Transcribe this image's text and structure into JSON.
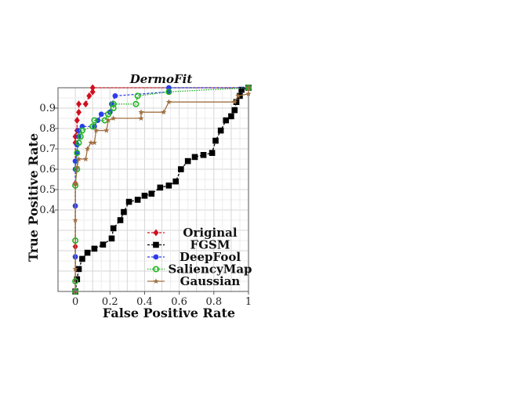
{
  "chart_data": {
    "type": "line",
    "title": "DermoFit",
    "xlabel": "False Positive Rate",
    "ylabel": "True Positive Rate",
    "xlim": [
      -0.1,
      1.0
    ],
    "ylim": [
      0.0,
      1.0
    ],
    "x_ticks": [
      0,
      0.2,
      0.4,
      0.6,
      0.8,
      1
    ],
    "x_tick_labels": [
      "0",
      "0.2",
      "0.4",
      "0.6",
      "0.8",
      "1"
    ],
    "y_ticks": [
      0.4,
      0.5,
      0.6,
      0.7,
      0.8,
      0.9
    ],
    "y_tick_labels": [
      "0.4",
      "0.5",
      "0.6",
      "0.7",
      "0.8",
      "0.9"
    ],
    "grid": true,
    "legend_position": "bottom-right",
    "series": [
      {
        "name": "Original",
        "color": "#d0101e",
        "marker": "diamond",
        "line": "dashed",
        "points": [
          [
            0,
            0
          ],
          [
            0,
            0.22
          ],
          [
            0,
            0.53
          ],
          [
            0,
            0.73
          ],
          [
            0,
            0.76
          ],
          [
            0.01,
            0.79
          ],
          [
            0.01,
            0.84
          ],
          [
            0.02,
            0.88
          ],
          [
            0.02,
            0.92
          ],
          [
            0.06,
            0.92
          ],
          [
            0.08,
            0.96
          ],
          [
            0.1,
            0.98
          ],
          [
            0.1,
            1.0
          ],
          [
            1.0,
            1.0
          ]
        ]
      },
      {
        "name": "FGSM",
        "color": "#000000",
        "marker": "square",
        "line": "dashed",
        "points": [
          [
            0,
            0
          ],
          [
            0.01,
            0.06
          ],
          [
            0.02,
            0.11
          ],
          [
            0.04,
            0.16
          ],
          [
            0.07,
            0.19
          ],
          [
            0.11,
            0.21
          ],
          [
            0.16,
            0.23
          ],
          [
            0.21,
            0.26
          ],
          [
            0.22,
            0.31
          ],
          [
            0.26,
            0.35
          ],
          [
            0.28,
            0.39
          ],
          [
            0.31,
            0.44
          ],
          [
            0.36,
            0.45
          ],
          [
            0.4,
            0.47
          ],
          [
            0.44,
            0.48
          ],
          [
            0.49,
            0.51
          ],
          [
            0.54,
            0.52
          ],
          [
            0.58,
            0.54
          ],
          [
            0.61,
            0.6
          ],
          [
            0.65,
            0.64
          ],
          [
            0.69,
            0.66
          ],
          [
            0.74,
            0.67
          ],
          [
            0.79,
            0.68
          ],
          [
            0.81,
            0.74
          ],
          [
            0.84,
            0.79
          ],
          [
            0.87,
            0.84
          ],
          [
            0.9,
            0.86
          ],
          [
            0.92,
            0.89
          ],
          [
            0.93,
            0.93
          ],
          [
            0.95,
            0.96
          ],
          [
            0.96,
            0.99
          ],
          [
            1.0,
            1.0
          ]
        ]
      },
      {
        "name": "DeepFool",
        "color": "#2b3ee8",
        "marker": "circle",
        "line": "dashed",
        "points": [
          [
            0,
            0
          ],
          [
            0,
            0.17
          ],
          [
            0,
            0.42
          ],
          [
            0,
            0.6
          ],
          [
            0,
            0.64
          ],
          [
            0.01,
            0.68
          ],
          [
            0.01,
            0.72
          ],
          [
            0.02,
            0.76
          ],
          [
            0.02,
            0.79
          ],
          [
            0.04,
            0.81
          ],
          [
            0.11,
            0.81
          ],
          [
            0.13,
            0.84
          ],
          [
            0.15,
            0.87
          ],
          [
            0.2,
            0.88
          ],
          [
            0.21,
            0.92
          ],
          [
            0.23,
            0.96
          ],
          [
            0.54,
            0.98
          ],
          [
            0.54,
            1.0
          ],
          [
            1.0,
            1.0
          ]
        ]
      },
      {
        "name": "SaliencyMap",
        "color": "#1fb51f",
        "marker": "circle-open",
        "line": "dotted",
        "points": [
          [
            0,
            0
          ],
          [
            0,
            0.05
          ],
          [
            0,
            0.25
          ],
          [
            0,
            0.52
          ],
          [
            0.01,
            0.6
          ],
          [
            0.01,
            0.68
          ],
          [
            0.02,
            0.73
          ],
          [
            0.03,
            0.76
          ],
          [
            0.04,
            0.79
          ],
          [
            0.1,
            0.81
          ],
          [
            0.11,
            0.84
          ],
          [
            0.17,
            0.84
          ],
          [
            0.19,
            0.87
          ],
          [
            0.22,
            0.9
          ],
          [
            0.22,
            0.92
          ],
          [
            0.35,
            0.92
          ],
          [
            0.36,
            0.96
          ],
          [
            0.54,
            0.98
          ],
          [
            1.0,
            1.0
          ]
        ]
      },
      {
        "name": "Gaussian",
        "color": "#a07040",
        "marker": "star",
        "line": "solid",
        "points": [
          [
            0,
            0
          ],
          [
            0,
            0.11
          ],
          [
            0,
            0.35
          ],
          [
            0,
            0.53
          ],
          [
            0.01,
            0.61
          ],
          [
            0.02,
            0.65
          ],
          [
            0.06,
            0.65
          ],
          [
            0.07,
            0.7
          ],
          [
            0.09,
            0.73
          ],
          [
            0.11,
            0.73
          ],
          [
            0.12,
            0.79
          ],
          [
            0.18,
            0.79
          ],
          [
            0.19,
            0.84
          ],
          [
            0.22,
            0.85
          ],
          [
            0.38,
            0.85
          ],
          [
            0.38,
            0.88
          ],
          [
            0.51,
            0.88
          ],
          [
            0.54,
            0.93
          ],
          [
            0.92,
            0.93
          ],
          [
            0.94,
            0.96
          ],
          [
            1.0,
            0.97
          ],
          [
            1.0,
            1.0
          ]
        ]
      }
    ]
  }
}
